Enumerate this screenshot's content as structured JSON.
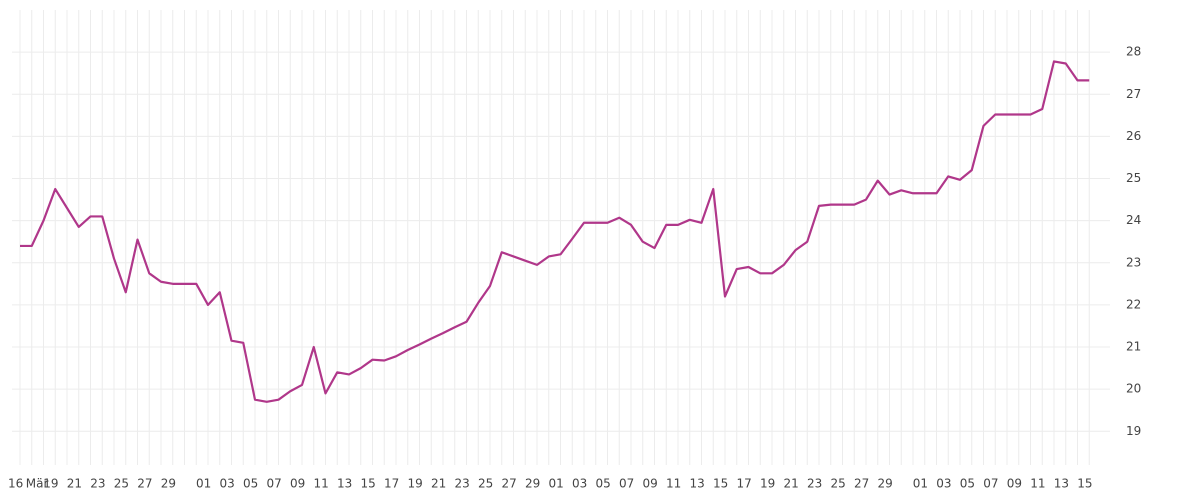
{
  "chart_data": {
    "type": "line",
    "categories": [
      "16",
      "Mär",
      null,
      "19",
      null,
      "21",
      null,
      "23",
      null,
      "25",
      null,
      "27",
      null,
      "29",
      null,
      null,
      "01",
      null,
      "03",
      null,
      "05",
      null,
      "07",
      null,
      "09",
      null,
      "11",
      null,
      "13",
      null,
      "15",
      null,
      "17",
      null,
      "19",
      null,
      "21",
      null,
      "23",
      null,
      "25",
      null,
      "27",
      null,
      "29",
      null,
      "01",
      null,
      "03",
      null,
      "05",
      null,
      "07",
      null,
      "09",
      null,
      "11",
      null,
      "13",
      null,
      "15",
      null,
      "17",
      null,
      "19",
      null,
      "21",
      null,
      "23",
      null,
      "25",
      null,
      "27",
      null,
      "29",
      null,
      null,
      "01",
      null,
      "03",
      null,
      "05",
      null,
      "07",
      null,
      "09",
      null,
      "11",
      null,
      "13",
      null,
      "15"
    ],
    "series": [
      {
        "color": "#b0378a",
        "values": [
          23.4,
          23.4,
          24.0,
          24.75,
          24.3,
          23.85,
          24.1,
          24.1,
          23.1,
          22.3,
          23.55,
          22.75,
          22.55,
          22.5,
          22.5,
          22.5,
          22.0,
          22.3,
          21.15,
          21.1,
          19.75,
          19.7,
          19.75,
          19.95,
          20.1,
          21.0,
          19.9,
          20.4,
          20.35,
          20.5,
          20.7,
          20.68,
          20.78,
          20.93,
          21.06,
          21.2,
          21.33,
          21.47,
          21.6,
          22.05,
          22.45,
          23.25,
          23.15,
          23.05,
          22.95,
          23.15,
          23.2,
          23.57,
          23.95,
          23.95,
          23.95,
          24.07,
          23.9,
          23.5,
          23.35,
          23.9,
          23.9,
          24.02,
          23.95,
          24.75,
          22.2,
          22.85,
          22.9,
          22.75,
          22.75,
          22.95,
          23.3,
          23.5,
          24.35,
          24.38,
          24.38,
          24.38,
          24.5,
          24.95,
          24.62,
          24.72,
          24.65,
          24.65,
          24.65,
          25.05,
          24.97,
          25.2,
          26.25,
          26.52,
          26.52,
          26.52,
          26.52,
          26.65,
          27.78,
          27.73,
          27.33,
          27.33
        ]
      }
    ],
    "ylim": [
      18.2,
      29.0
    ],
    "yticks": [
      19,
      20,
      21,
      22,
      23,
      24,
      25,
      26,
      27,
      28
    ],
    "grid": true,
    "y_axis_side": "right"
  }
}
